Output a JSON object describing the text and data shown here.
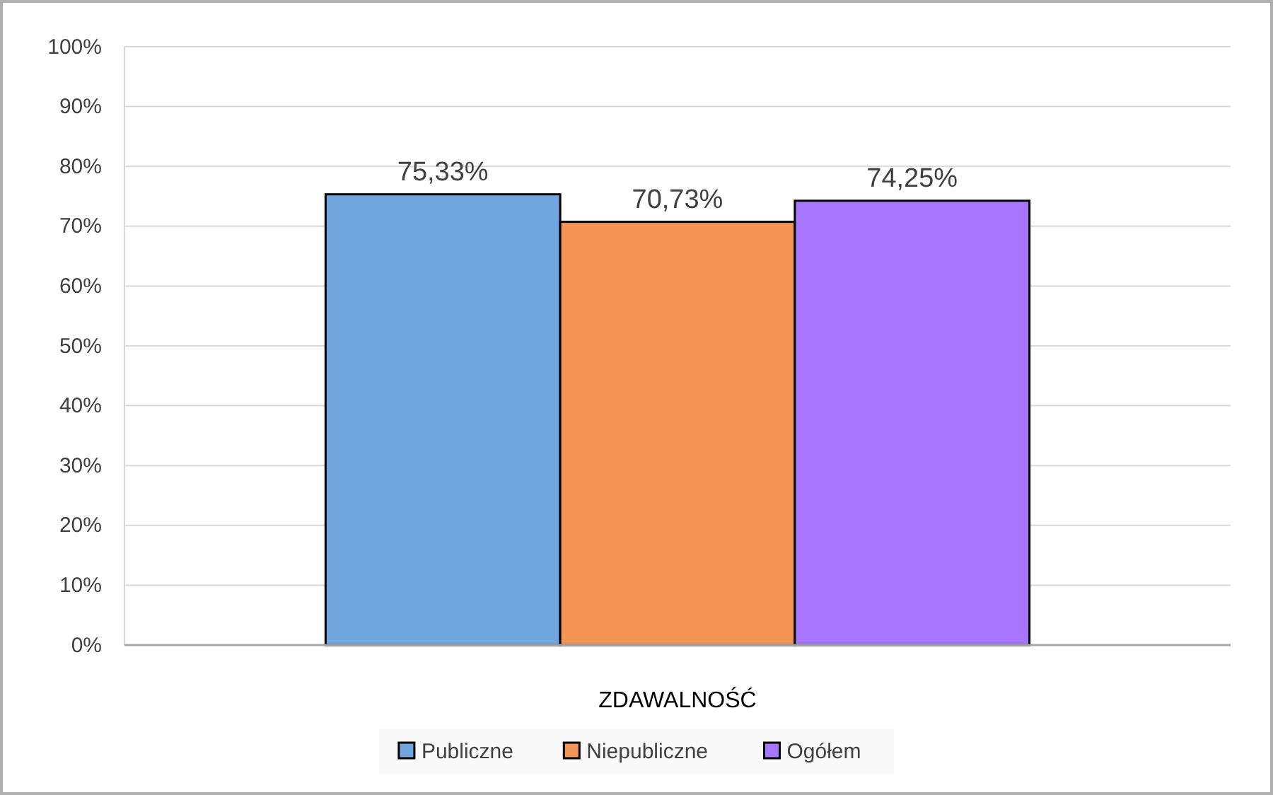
{
  "chart_data": {
    "type": "bar",
    "categories": [
      "ZDAWALNOŚĆ"
    ],
    "series": [
      {
        "name": "Publiczne",
        "color": "#71a6de",
        "values": [
          75.33
        ],
        "value_labels": [
          "75,33%"
        ]
      },
      {
        "name": "Niepubliczne",
        "color": "#f39655",
        "values": [
          70.73
        ],
        "value_labels": [
          "70,73%"
        ]
      },
      {
        "name": "Ogółem",
        "color": "#a875fe",
        "values": [
          74.25
        ],
        "value_labels": [
          "74,25%"
        ]
      }
    ],
    "ylim": [
      0,
      100
    ],
    "yticks": [
      {
        "value": 0,
        "label": "0%"
      },
      {
        "value": 10,
        "label": "10%"
      },
      {
        "value": 20,
        "label": "20%"
      },
      {
        "value": 30,
        "label": "30%"
      },
      {
        "value": 40,
        "label": "40%"
      },
      {
        "value": 50,
        "label": "50%"
      },
      {
        "value": 60,
        "label": "60%"
      },
      {
        "value": 70,
        "label": "70%"
      },
      {
        "value": 80,
        "label": "80%"
      },
      {
        "value": 90,
        "label": "90%"
      },
      {
        "value": 100,
        "label": "100%"
      }
    ],
    "grid": "y",
    "legend": "bottom"
  }
}
